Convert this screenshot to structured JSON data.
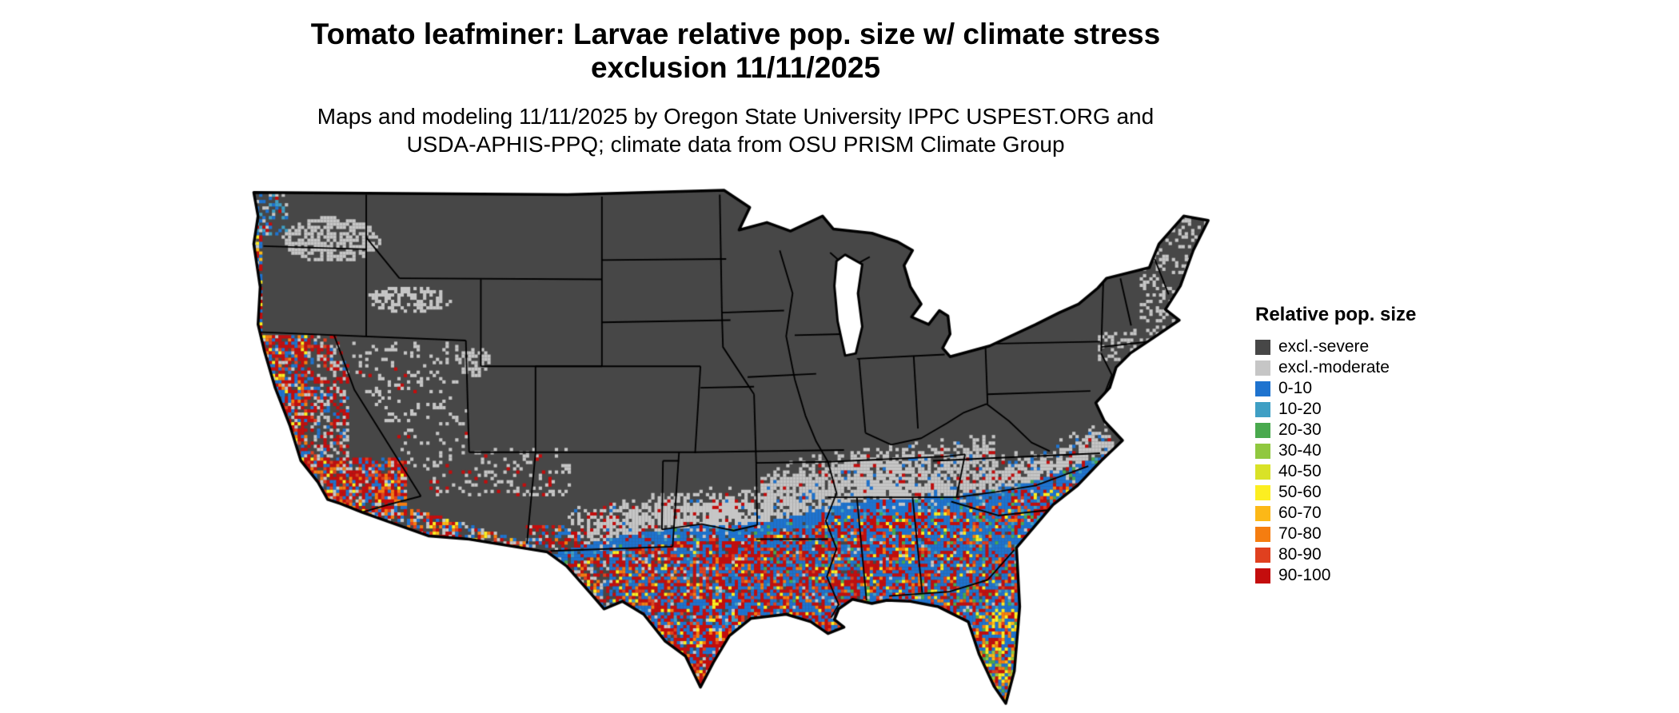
{
  "header": {
    "title_line1": "Tomato leafminer: Larvae relative pop. size w/ climate stress",
    "title_line2": "exclusion 11/11/2025",
    "subtitle_line1": "Maps and modeling 11/11/2025 by Oregon State University IPPC USPEST.ORG and",
    "subtitle_line2": "USDA-APHIS-PPQ; climate data from OSU PRISM Climate Group"
  },
  "legend": {
    "title": "Relative pop. size",
    "items": [
      {
        "label": "excl.-severe",
        "color": "#474747"
      },
      {
        "label": "excl.-moderate",
        "color": "#c6c6c6"
      },
      {
        "label": "0-10",
        "color": "#1e73cf"
      },
      {
        "label": "10-20",
        "color": "#3f9fc4"
      },
      {
        "label": "20-30",
        "color": "#49a94e"
      },
      {
        "label": "30-40",
        "color": "#90c83f"
      },
      {
        "label": "40-50",
        "color": "#d9e227"
      },
      {
        "label": "50-60",
        "color": "#fcee21"
      },
      {
        "label": "60-70",
        "color": "#fcb817"
      },
      {
        "label": "70-80",
        "color": "#f57d10"
      },
      {
        "label": "80-90",
        "color": "#e0401f"
      },
      {
        "label": "90-100",
        "color": "#c40d0d"
      }
    ]
  },
  "map": {
    "alt": "Contiguous United States raster map shaded by relative population size category with state borders"
  }
}
